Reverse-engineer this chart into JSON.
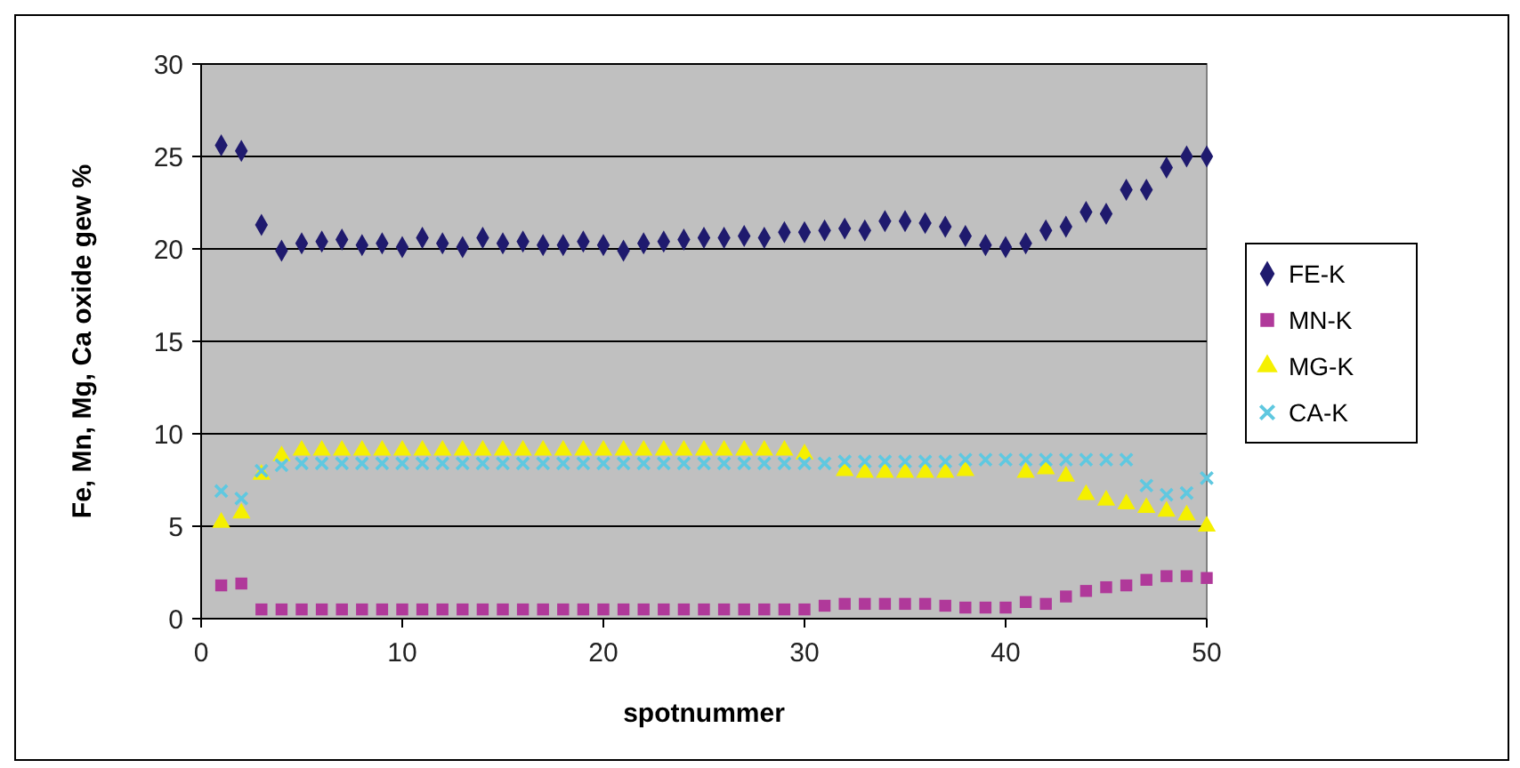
{
  "chart_data": {
    "type": "scatter",
    "xlabel": "spotnummer",
    "ylabel": "Fe, Mn, Mg, Ca oxide gew %",
    "x": [
      1,
      2,
      3,
      4,
      5,
      6,
      7,
      8,
      9,
      10,
      11,
      12,
      13,
      14,
      15,
      16,
      17,
      18,
      19,
      20,
      21,
      22,
      23,
      24,
      25,
      26,
      27,
      28,
      29,
      30,
      31,
      32,
      33,
      34,
      35,
      36,
      37,
      38,
      39,
      40,
      41,
      42,
      43,
      44,
      45,
      46,
      47,
      48,
      49,
      50
    ],
    "series": [
      {
        "name": "FE-K",
        "color": "#1f1a6e",
        "marker": "diamond",
        "values": [
          25.6,
          25.3,
          21.3,
          19.9,
          20.3,
          20.4,
          20.5,
          20.2,
          20.3,
          20.1,
          20.6,
          20.3,
          20.1,
          20.6,
          20.3,
          20.4,
          20.2,
          20.2,
          20.4,
          20.2,
          19.9,
          20.3,
          20.4,
          20.5,
          20.6,
          20.6,
          20.7,
          20.6,
          20.9,
          20.9,
          21.0,
          21.1,
          21.0,
          21.5,
          21.5,
          21.4,
          21.2,
          20.7,
          20.2,
          20.1,
          20.3,
          21.0,
          21.2,
          22.0,
          21.9,
          23.2,
          23.2,
          24.4,
          25.0,
          25.0
        ]
      },
      {
        "name": "MN-K",
        "color": "#b0399a",
        "marker": "square",
        "values": [
          1.8,
          1.9,
          0.5,
          0.5,
          0.5,
          0.5,
          0.5,
          0.5,
          0.5,
          0.5,
          0.5,
          0.5,
          0.5,
          0.5,
          0.5,
          0.5,
          0.5,
          0.5,
          0.5,
          0.5,
          0.5,
          0.5,
          0.5,
          0.5,
          0.5,
          0.5,
          0.5,
          0.5,
          0.5,
          0.5,
          0.7,
          0.8,
          0.8,
          0.8,
          0.8,
          0.8,
          0.7,
          0.6,
          0.6,
          0.6,
          0.9,
          0.8,
          1.2,
          1.5,
          1.7,
          1.8,
          2.1,
          2.3,
          2.3,
          2.2
        ]
      },
      {
        "name": "MG-K",
        "color": "#f5f000",
        "marker": "triangle",
        "values": [
          5.2,
          5.7,
          7.8,
          8.8,
          9.1,
          9.1,
          9.1,
          9.1,
          9.1,
          9.1,
          9.1,
          9.1,
          9.1,
          9.1,
          9.1,
          9.1,
          9.1,
          9.1,
          9.1,
          9.1,
          9.1,
          9.1,
          9.1,
          9.1,
          9.1,
          9.1,
          9.1,
          9.1,
          9.1,
          8.9,
          null,
          8.0,
          7.9,
          7.9,
          7.9,
          7.9,
          7.9,
          8.0,
          null,
          null,
          7.9,
          8.1,
          7.7,
          6.7,
          6.4,
          6.2,
          6.0,
          5.8,
          5.6,
          5.0
        ]
      },
      {
        "name": "CA-K",
        "color": "#5fc8e0",
        "marker": "cross",
        "values": [
          6.9,
          6.5,
          8.0,
          8.3,
          8.4,
          8.4,
          8.4,
          8.4,
          8.4,
          8.4,
          8.4,
          8.4,
          8.4,
          8.4,
          8.4,
          8.4,
          8.4,
          8.4,
          8.4,
          8.4,
          8.4,
          8.4,
          8.4,
          8.4,
          8.4,
          8.4,
          8.4,
          8.4,
          8.4,
          8.4,
          8.4,
          8.5,
          8.5,
          8.5,
          8.5,
          8.5,
          8.5,
          8.6,
          8.6,
          8.6,
          8.6,
          8.6,
          8.6,
          8.6,
          8.6,
          8.6,
          7.2,
          6.7,
          6.8,
          7.6
        ]
      }
    ],
    "xlim": [
      0,
      50
    ],
    "xticks": [
      0,
      10,
      20,
      30,
      40,
      50
    ],
    "ylim": [
      0,
      30
    ],
    "yticks": [
      0,
      5,
      10,
      15,
      20,
      25,
      30
    ],
    "grid": "y",
    "legend": "right"
  }
}
